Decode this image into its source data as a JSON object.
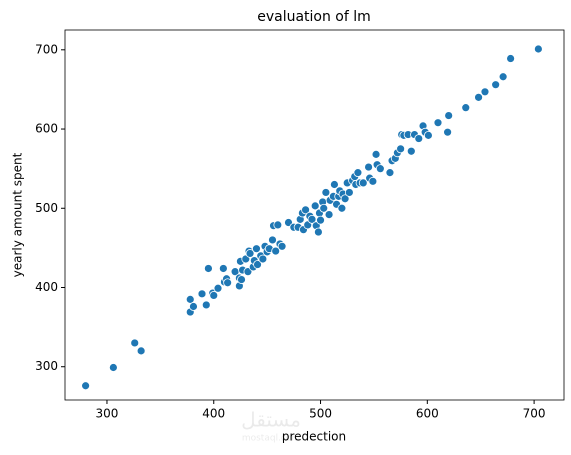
{
  "chart_data": {
    "type": "scatter",
    "title": "evaluation of lm",
    "xlabel": "predection",
    "ylabel": "yearly amount spent",
    "color": "#1f77b4",
    "x": [
      280,
      306,
      326,
      332,
      378,
      378,
      381,
      389,
      393,
      395,
      399,
      400,
      404,
      409,
      410,
      412,
      413,
      420,
      424,
      424,
      425,
      426,
      427,
      430,
      432,
      433,
      434,
      437,
      438,
      440,
      441,
      444,
      446,
      448,
      450,
      452,
      455,
      456,
      458,
      460,
      462,
      464,
      470,
      475,
      479,
      481,
      483,
      484,
      486,
      488,
      490,
      492,
      495,
      496,
      498,
      499,
      500,
      502,
      503,
      505,
      508,
      509,
      512,
      513,
      515,
      517,
      518,
      520,
      521,
      523,
      525,
      527,
      530,
      532,
      533,
      535,
      537,
      540,
      545,
      546,
      549,
      552,
      553,
      556,
      565,
      567,
      570,
      572,
      575,
      576,
      578,
      582,
      585,
      588,
      592,
      596,
      598,
      601,
      610,
      619,
      620,
      636,
      648,
      654,
      664,
      671,
      678,
      704
    ],
    "y": [
      276,
      299,
      330,
      320,
      385,
      369,
      376,
      392,
      378,
      424,
      393,
      390,
      399,
      424,
      407,
      411,
      406,
      420,
      402,
      412,
      433,
      410,
      422,
      436,
      420,
      446,
      443,
      426,
      434,
      449,
      429,
      440,
      436,
      452,
      445,
      449,
      460,
      478,
      446,
      479,
      455,
      452,
      482,
      476,
      476,
      486,
      494,
      473,
      498,
      479,
      490,
      486,
      503,
      478,
      470,
      494,
      485,
      508,
      500,
      520,
      492,
      510,
      515,
      530,
      505,
      515,
      522,
      500,
      518,
      512,
      532,
      520,
      535,
      540,
      530,
      545,
      532,
      532,
      552,
      538,
      534,
      568,
      555,
      550,
      545,
      560,
      563,
      570,
      575,
      593,
      592,
      593,
      572,
      593,
      588,
      604,
      596,
      592,
      608,
      596,
      617,
      627,
      640,
      647,
      656,
      666,
      689,
      701
    ],
    "xlim": [
      260.7,
      728
    ],
    "ylim": [
      258,
      725
    ],
    "xticks": [
      300,
      400,
      500,
      600,
      700
    ],
    "yticks": [
      300,
      400,
      500,
      600,
      700
    ]
  },
  "watermark": {
    "arabic": "مستقل",
    "latin": "mostaql.com"
  }
}
